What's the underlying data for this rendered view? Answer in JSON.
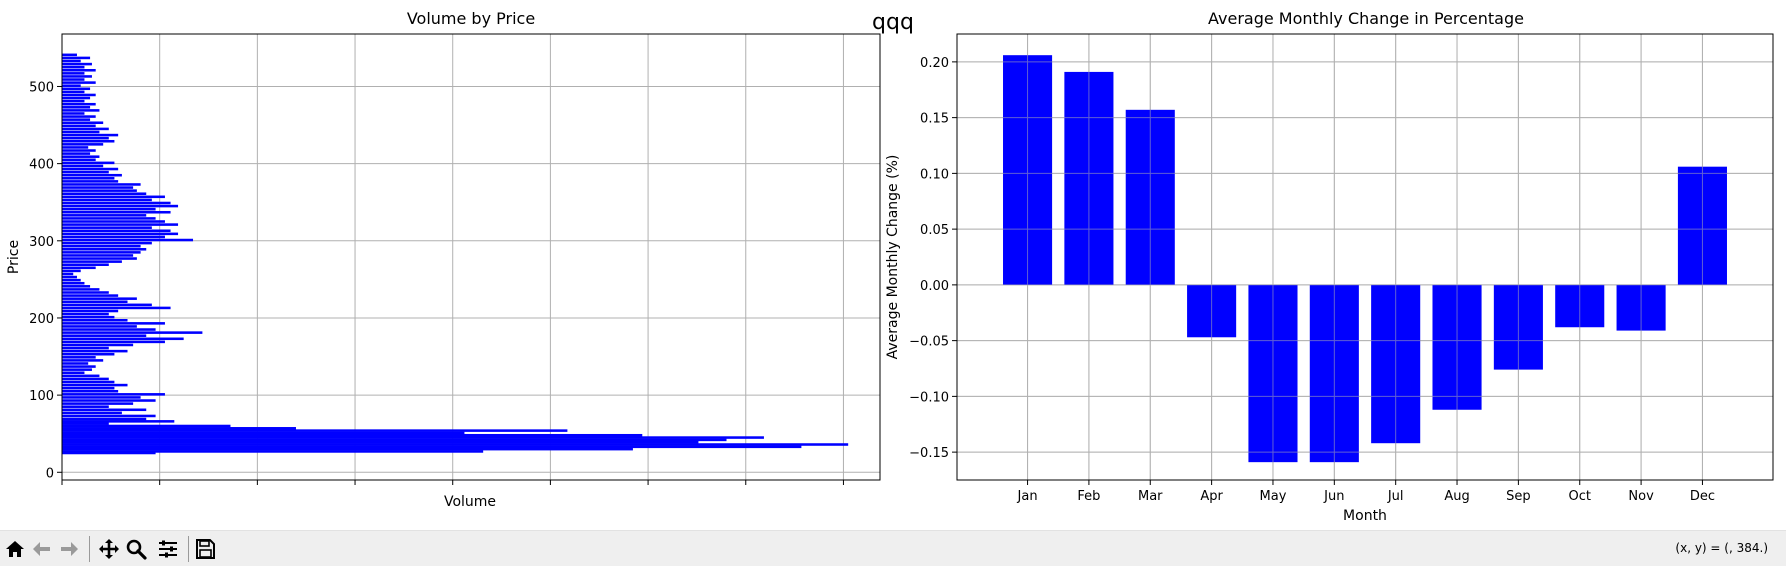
{
  "figure": {
    "suptitle": "qqq"
  },
  "chart_data": [
    {
      "type": "bar",
      "orientation": "horizontal",
      "title": "Volume by Price",
      "xlabel": "Volume",
      "ylabel": "Price",
      "ylim": [
        -10,
        568
      ],
      "xlim": [
        0,
        437
      ],
      "yticks": [
        0,
        100,
        200,
        300,
        400,
        500
      ],
      "x_tick_labels_shown": false,
      "grid": true,
      "color": "#0000ff",
      "bins": [
        {
          "y": 25,
          "x": 50
        },
        {
          "y": 27,
          "x": 225
        },
        {
          "y": 30,
          "x": 305
        },
        {
          "y": 33,
          "x": 395
        },
        {
          "y": 36,
          "x": 420
        },
        {
          "y": 39,
          "x": 340
        },
        {
          "y": 42,
          "x": 355
        },
        {
          "y": 45,
          "x": 375
        },
        {
          "y": 48,
          "x": 310
        },
        {
          "y": 51,
          "x": 215
        },
        {
          "y": 54,
          "x": 270
        },
        {
          "y": 57,
          "x": 125
        },
        {
          "y": 60,
          "x": 90
        },
        {
          "y": 63,
          "x": 25
        },
        {
          "y": 66,
          "x": 60
        },
        {
          "y": 69,
          "x": 45
        },
        {
          "y": 73,
          "x": 50
        },
        {
          "y": 77,
          "x": 32
        },
        {
          "y": 81,
          "x": 45
        },
        {
          "y": 85,
          "x": 25
        },
        {
          "y": 89,
          "x": 38
        },
        {
          "y": 93,
          "x": 50
        },
        {
          "y": 97,
          "x": 42
        },
        {
          "y": 101,
          "x": 55
        },
        {
          "y": 105,
          "x": 30
        },
        {
          "y": 109,
          "x": 28
        },
        {
          "y": 113,
          "x": 35
        },
        {
          "y": 117,
          "x": 28
        },
        {
          "y": 121,
          "x": 25
        },
        {
          "y": 125,
          "x": 20
        },
        {
          "y": 129,
          "x": 12
        },
        {
          "y": 133,
          "x": 16
        },
        {
          "y": 137,
          "x": 18
        },
        {
          "y": 141,
          "x": 14
        },
        {
          "y": 145,
          "x": 22
        },
        {
          "y": 149,
          "x": 18
        },
        {
          "y": 153,
          "x": 28
        },
        {
          "y": 157,
          "x": 35
        },
        {
          "y": 161,
          "x": 25
        },
        {
          "y": 165,
          "x": 38
        },
        {
          "y": 169,
          "x": 55
        },
        {
          "y": 173,
          "x": 65
        },
        {
          "y": 177,
          "x": 45
        },
        {
          "y": 181,
          "x": 75
        },
        {
          "y": 185,
          "x": 50
        },
        {
          "y": 189,
          "x": 40
        },
        {
          "y": 193,
          "x": 55
        },
        {
          "y": 197,
          "x": 35
        },
        {
          "y": 201,
          "x": 28
        },
        {
          "y": 205,
          "x": 25
        },
        {
          "y": 209,
          "x": 30
        },
        {
          "y": 213,
          "x": 58
        },
        {
          "y": 217,
          "x": 48
        },
        {
          "y": 221,
          "x": 35
        },
        {
          "y": 225,
          "x": 40
        },
        {
          "y": 229,
          "x": 30
        },
        {
          "y": 233,
          "x": 25
        },
        {
          "y": 237,
          "x": 20
        },
        {
          "y": 241,
          "x": 15
        },
        {
          "y": 245,
          "x": 12
        },
        {
          "y": 249,
          "x": 10
        },
        {
          "y": 253,
          "x": 8
        },
        {
          "y": 257,
          "x": 6
        },
        {
          "y": 261,
          "x": 10
        },
        {
          "y": 265,
          "x": 18
        },
        {
          "y": 269,
          "x": 25
        },
        {
          "y": 273,
          "x": 32
        },
        {
          "y": 277,
          "x": 40
        },
        {
          "y": 281,
          "x": 38
        },
        {
          "y": 285,
          "x": 42
        },
        {
          "y": 289,
          "x": 45
        },
        {
          "y": 293,
          "x": 42
        },
        {
          "y": 297,
          "x": 48
        },
        {
          "y": 301,
          "x": 70
        },
        {
          "y": 305,
          "x": 55
        },
        {
          "y": 309,
          "x": 62
        },
        {
          "y": 313,
          "x": 58
        },
        {
          "y": 317,
          "x": 48
        },
        {
          "y": 321,
          "x": 62
        },
        {
          "y": 325,
          "x": 55
        },
        {
          "y": 329,
          "x": 50
        },
        {
          "y": 333,
          "x": 45
        },
        {
          "y": 337,
          "x": 58
        },
        {
          "y": 341,
          "x": 50
        },
        {
          "y": 345,
          "x": 62
        },
        {
          "y": 349,
          "x": 58
        },
        {
          "y": 353,
          "x": 48
        },
        {
          "y": 357,
          "x": 55
        },
        {
          "y": 361,
          "x": 45
        },
        {
          "y": 365,
          "x": 40
        },
        {
          "y": 369,
          "x": 38
        },
        {
          "y": 373,
          "x": 42
        },
        {
          "y": 377,
          "x": 30
        },
        {
          "y": 381,
          "x": 28
        },
        {
          "y": 385,
          "x": 32
        },
        {
          "y": 389,
          "x": 25
        },
        {
          "y": 393,
          "x": 30
        },
        {
          "y": 397,
          "x": 22
        },
        {
          "y": 401,
          "x": 28
        },
        {
          "y": 405,
          "x": 18
        },
        {
          "y": 409,
          "x": 20
        },
        {
          "y": 413,
          "x": 15
        },
        {
          "y": 417,
          "x": 18
        },
        {
          "y": 421,
          "x": 14
        },
        {
          "y": 425,
          "x": 22
        },
        {
          "y": 429,
          "x": 28
        },
        {
          "y": 433,
          "x": 25
        },
        {
          "y": 437,
          "x": 30
        },
        {
          "y": 441,
          "x": 20
        },
        {
          "y": 445,
          "x": 25
        },
        {
          "y": 449,
          "x": 18
        },
        {
          "y": 453,
          "x": 22
        },
        {
          "y": 457,
          "x": 15
        },
        {
          "y": 461,
          "x": 18
        },
        {
          "y": 465,
          "x": 12
        },
        {
          "y": 469,
          "x": 20
        },
        {
          "y": 473,
          "x": 15
        },
        {
          "y": 477,
          "x": 18
        },
        {
          "y": 481,
          "x": 12
        },
        {
          "y": 485,
          "x": 15
        },
        {
          "y": 489,
          "x": 18
        },
        {
          "y": 493,
          "x": 12
        },
        {
          "y": 497,
          "x": 15
        },
        {
          "y": 501,
          "x": 10
        },
        {
          "y": 505,
          "x": 18
        },
        {
          "y": 509,
          "x": 12
        },
        {
          "y": 513,
          "x": 16
        },
        {
          "y": 517,
          "x": 12
        },
        {
          "y": 521,
          "x": 18
        },
        {
          "y": 525,
          "x": 12
        },
        {
          "y": 529,
          "x": 16
        },
        {
          "y": 533,
          "x": 10
        },
        {
          "y": 537,
          "x": 15
        },
        {
          "y": 541,
          "x": 8
        }
      ],
      "bin_height": 3.3
    },
    {
      "type": "bar",
      "title": "Average Monthly Change in Percentage",
      "xlabel": "Month",
      "ylabel": "Average Monthly Change (%)",
      "ylim": [
        -0.175,
        0.225
      ],
      "yticks": [
        -0.15,
        -0.1,
        -0.05,
        0.0,
        0.05,
        0.1,
        0.15,
        0.2
      ],
      "ytick_labels": [
        "−0.15",
        "−0.10",
        "−0.05",
        "0.00",
        "0.05",
        "0.10",
        "0.15",
        "0.20"
      ],
      "grid": true,
      "color": "#0000ff",
      "categories": [
        "Jan",
        "Feb",
        "Mar",
        "Apr",
        "May",
        "Jun",
        "Jul",
        "Aug",
        "Sep",
        "Oct",
        "Nov",
        "Dec"
      ],
      "values": [
        0.206,
        0.191,
        0.157,
        -0.047,
        -0.159,
        -0.159,
        -0.142,
        -0.112,
        -0.076,
        -0.038,
        -0.041,
        0.106
      ]
    }
  ],
  "toolbar": {
    "buttons": [
      {
        "name": "home-button",
        "icon": "home-icon"
      },
      {
        "name": "back-button",
        "icon": "arrow-left-icon"
      },
      {
        "name": "forward-button",
        "icon": "arrow-right-icon"
      },
      {
        "name": "pan-button",
        "icon": "move-icon"
      },
      {
        "name": "zoom-button",
        "icon": "magnifier-icon"
      },
      {
        "name": "configure-subplots-button",
        "icon": "sliders-icon"
      },
      {
        "name": "save-button",
        "icon": "floppy-disk-icon"
      }
    ],
    "coords_text": "(x, y) = (, 384.)"
  }
}
